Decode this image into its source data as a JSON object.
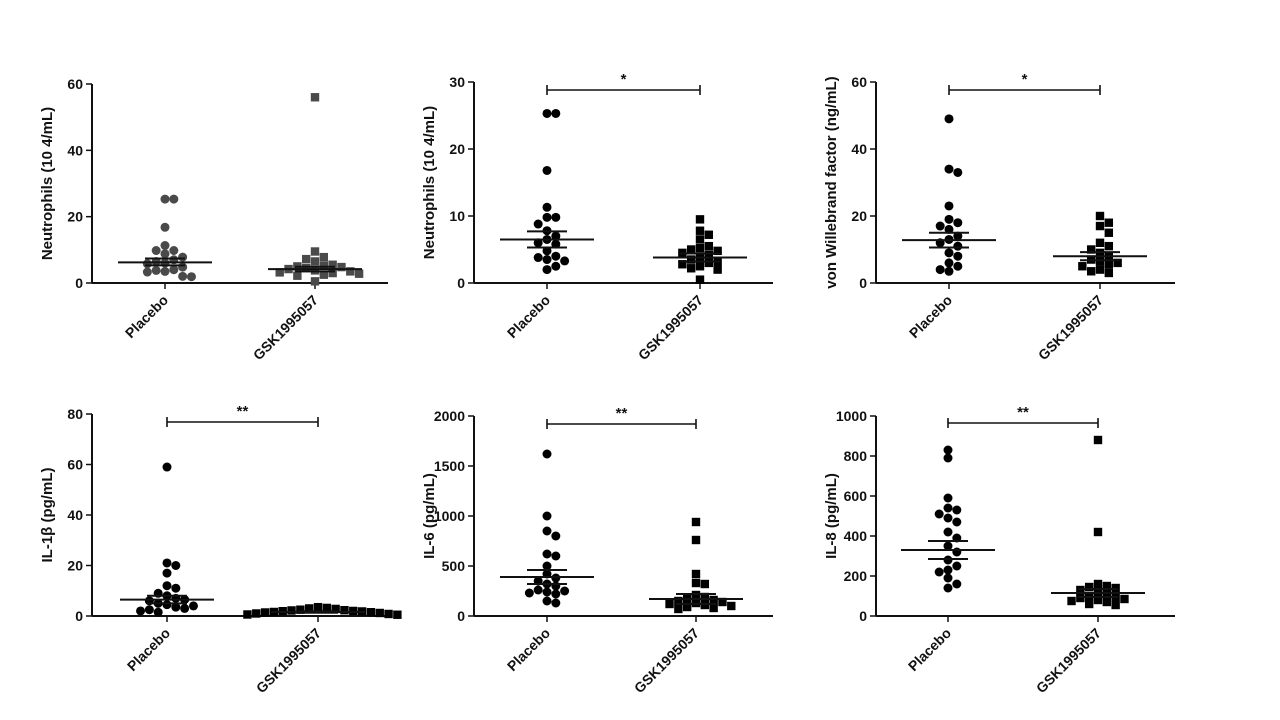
{
  "chart_data": [
    {
      "type": "scatter",
      "ylabel": "Neutrophils (10 4/mL)",
      "ylim": [
        0,
        60
      ],
      "yticks": [
        "0",
        "20",
        "40",
        "60"
      ],
      "categories": [
        "Placebo",
        "GSK1995057"
      ],
      "significance": "",
      "series": [
        {
          "values": [
            25.3,
            25.3,
            16.8,
            11.3,
            9.8,
            9.8,
            8.8,
            7.8,
            7.0,
            6.5,
            6.0,
            5.8,
            4.8,
            4.0,
            3.8,
            3.5,
            3.3,
            2.0,
            1.9
          ],
          "mean": 6.2,
          "sem_low": 5.3,
          "sem_high": 7.4,
          "marker": "circle",
          "color": "#4a4a4a"
        },
        {
          "values": [
            56.0,
            9.5,
            7.8,
            7.2,
            6.5,
            5.5,
            5.2,
            5.0,
            4.8,
            4.5,
            4.2,
            3.8,
            3.5,
            3.2,
            3.0,
            2.8,
            2.5,
            2.2,
            0.5
          ],
          "mean": 4.2,
          "sem_low": 3.5,
          "sem_high": 4.9,
          "marker": "square",
          "color": "#4a4a4a"
        }
      ]
    },
    {
      "type": "scatter",
      "ylabel": "Neutrophils (10 4/mL)",
      "ylim": [
        0,
        30
      ],
      "yticks": [
        "0",
        "10",
        "20",
        "30"
      ],
      "categories": [
        "Placebo",
        "GSK1995057"
      ],
      "significance": "*",
      "series": [
        {
          "values": [
            25.3,
            25.3,
            16.8,
            11.3,
            9.8,
            9.8,
            8.8,
            7.8,
            7.0,
            6.5,
            6.0,
            5.8,
            4.8,
            4.0,
            3.8,
            3.5,
            3.3,
            2.5,
            2.0
          ],
          "mean": 6.5,
          "sem_low": 5.3,
          "sem_high": 7.7,
          "marker": "circle",
          "color": "#000000"
        },
        {
          "values": [
            9.5,
            7.8,
            7.2,
            6.5,
            5.5,
            5.2,
            5.0,
            4.8,
            4.5,
            4.2,
            3.8,
            3.5,
            3.2,
            3.0,
            2.8,
            2.5,
            2.2,
            2.0,
            0.5
          ],
          "mean": 3.8,
          "sem_low": 3.2,
          "sem_high": 4.4,
          "marker": "square",
          "color": "#000000"
        }
      ]
    },
    {
      "type": "scatter",
      "ylabel": "von Willebrand factor (ng/mL)",
      "ylim": [
        0,
        60
      ],
      "yticks": [
        "0",
        "20",
        "40",
        "60"
      ],
      "categories": [
        "Placebo",
        "GSK1995057"
      ],
      "significance": "*",
      "series": [
        {
          "values": [
            49,
            34,
            33,
            23,
            19,
            18,
            17,
            16,
            14,
            13,
            12,
            11,
            9,
            8,
            6,
            5,
            4,
            3.5
          ],
          "mean": 12.8,
          "sem_low": 10.6,
          "sem_high": 15.0,
          "marker": "circle",
          "color": "#000000"
        },
        {
          "values": [
            20,
            18,
            17,
            15,
            12,
            11,
            10,
            9,
            8,
            7,
            6.5,
            6,
            5.5,
            5,
            4,
            3.5,
            3
          ],
          "mean": 8.0,
          "sem_low": 6.8,
          "sem_high": 9.2,
          "marker": "square",
          "color": "#000000"
        }
      ]
    },
    {
      "type": "scatter",
      "ylabel": "IL-1β (pg/mL)",
      "ylim": [
        0,
        80
      ],
      "yticks": [
        "0",
        "20",
        "40",
        "60",
        "80"
      ],
      "categories": [
        "Placebo",
        "GSK1995057"
      ],
      "significance": "**",
      "series": [
        {
          "values": [
            59,
            21,
            20,
            17,
            12,
            11,
            9,
            8,
            7,
            6.5,
            6,
            5,
            4.5,
            4,
            3.5,
            3,
            2.5,
            2,
            1.5
          ],
          "mean": 6.5,
          "sem_low": 5.0,
          "sem_high": 8.0,
          "marker": "circle",
          "color": "#000000"
        },
        {
          "values": [
            3.5,
            3.2,
            3.0,
            2.8,
            2.5,
            2.3,
            2.2,
            2.0,
            1.9,
            1.8,
            1.6,
            1.5,
            1.4,
            1.2,
            1.0,
            0.8,
            0.6,
            0.5
          ],
          "mean": 1.6,
          "sem_low": 1.3,
          "sem_high": 1.9,
          "marker": "square",
          "color": "#000000"
        }
      ]
    },
    {
      "type": "scatter",
      "ylabel": "IL-6 (pg/mL)",
      "ylim": [
        0,
        2000
      ],
      "yticks": [
        "0",
        "500",
        "1000",
        "1500",
        "2000"
      ],
      "categories": [
        "Placebo",
        "GSK1995057"
      ],
      "significance": "**",
      "series": [
        {
          "values": [
            1620,
            1000,
            850,
            800,
            620,
            600,
            500,
            420,
            380,
            350,
            320,
            300,
            260,
            250,
            240,
            230,
            220,
            150,
            130
          ],
          "mean": 390,
          "sem_low": 320,
          "sem_high": 460,
          "marker": "circle",
          "color": "#000000"
        },
        {
          "values": [
            940,
            760,
            420,
            330,
            320,
            210,
            190,
            170,
            160,
            150,
            140,
            130,
            120,
            110,
            100,
            90,
            80,
            70
          ],
          "mean": 170,
          "sem_low": 120,
          "sem_high": 220,
          "marker": "square",
          "color": "#000000"
        }
      ]
    },
    {
      "type": "scatter",
      "ylabel": "IL-8 (pg/mL)",
      "ylim": [
        0,
        1000
      ],
      "yticks": [
        "0",
        "200",
        "400",
        "600",
        "800",
        "1000"
      ],
      "categories": [
        "Placebo",
        "GSK1995057"
      ],
      "significance": "**",
      "series": [
        {
          "values": [
            830,
            790,
            590,
            540,
            530,
            510,
            490,
            470,
            420,
            390,
            350,
            320,
            280,
            250,
            230,
            220,
            190,
            160,
            140
          ],
          "mean": 330,
          "sem_low": 285,
          "sem_high": 375,
          "marker": "circle",
          "color": "#000000"
        },
        {
          "values": [
            880,
            420,
            160,
            150,
            145,
            140,
            130,
            120,
            110,
            100,
            95,
            90,
            85,
            80,
            75,
            70,
            60,
            55
          ],
          "mean": 115,
          "sem_low": 95,
          "sem_high": 135,
          "marker": "square",
          "color": "#000000"
        }
      ]
    }
  ]
}
